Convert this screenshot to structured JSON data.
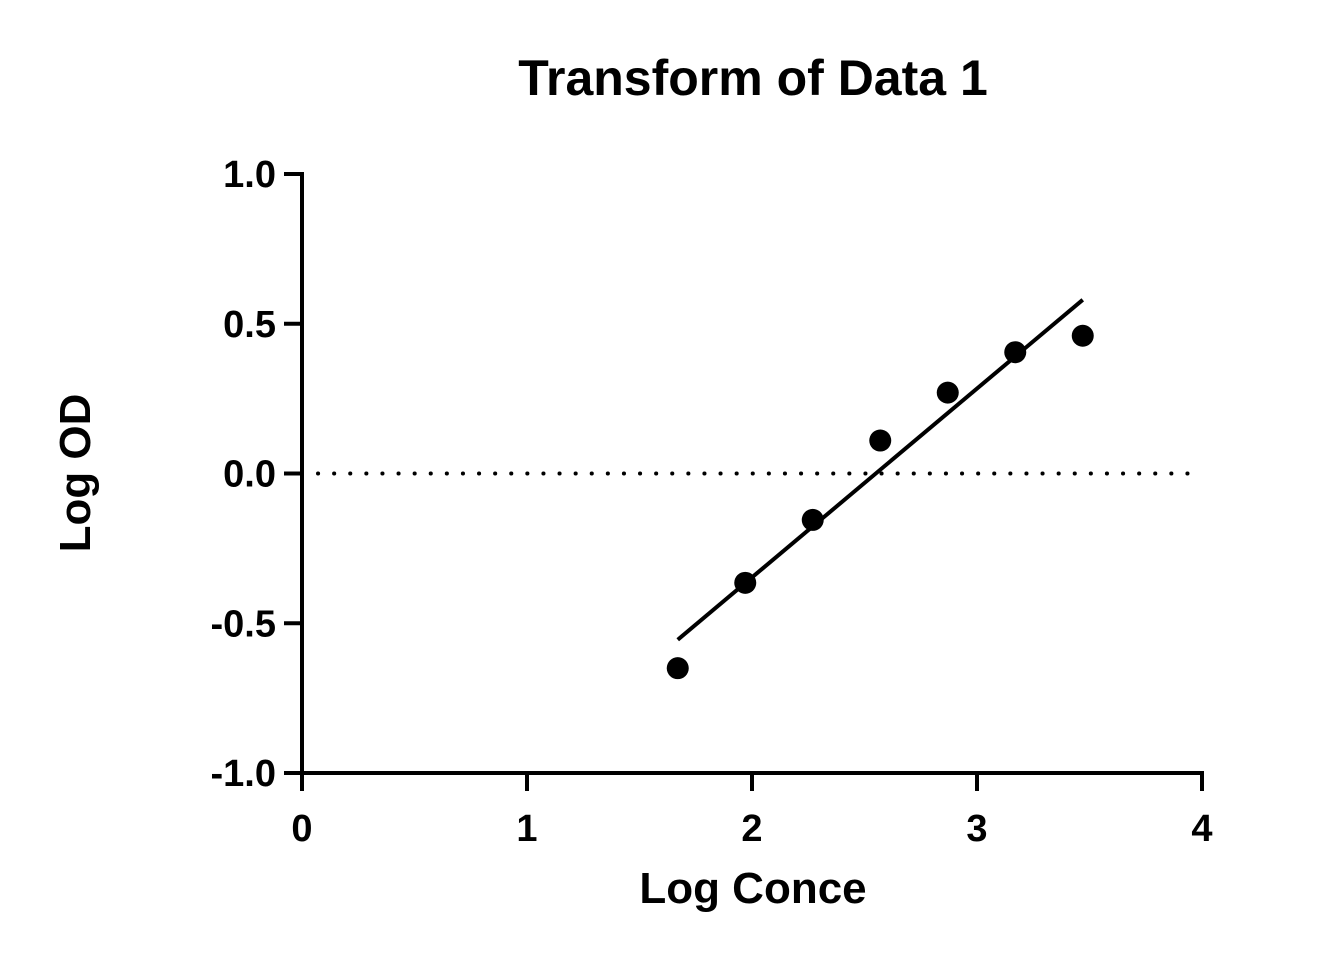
{
  "chart_data": {
    "type": "scatter",
    "title": "Transform of Data 1",
    "xlabel": "Log Conce",
    "ylabel": "Log OD",
    "xlim": [
      0,
      4
    ],
    "ylim": [
      -1.0,
      1.0
    ],
    "x_ticks": [
      "0",
      "1",
      "2",
      "3",
      "4"
    ],
    "x_tick_values": [
      0,
      1,
      2,
      3,
      4
    ],
    "y_ticks": [
      "1.0",
      "0.5",
      "0.0",
      "-0.5",
      "-1.0"
    ],
    "y_tick_values": [
      1.0,
      0.5,
      0.0,
      -0.5,
      -1.0
    ],
    "grid": false,
    "reference_line": {
      "y": 0.0,
      "style": "dotted"
    },
    "series": [
      {
        "type": "scatter",
        "x": [
          1.67,
          1.97,
          2.27,
          2.57,
          2.87,
          3.17,
          3.47
        ],
        "y": [
          -0.65,
          -0.365,
          -0.155,
          0.11,
          0.27,
          0.405,
          0.46
        ],
        "color": "#000000"
      }
    ],
    "fit_line": {
      "x": [
        1.67,
        3.47
      ],
      "y": [
        -0.555,
        0.58
      ],
      "color": "#000000"
    }
  }
}
